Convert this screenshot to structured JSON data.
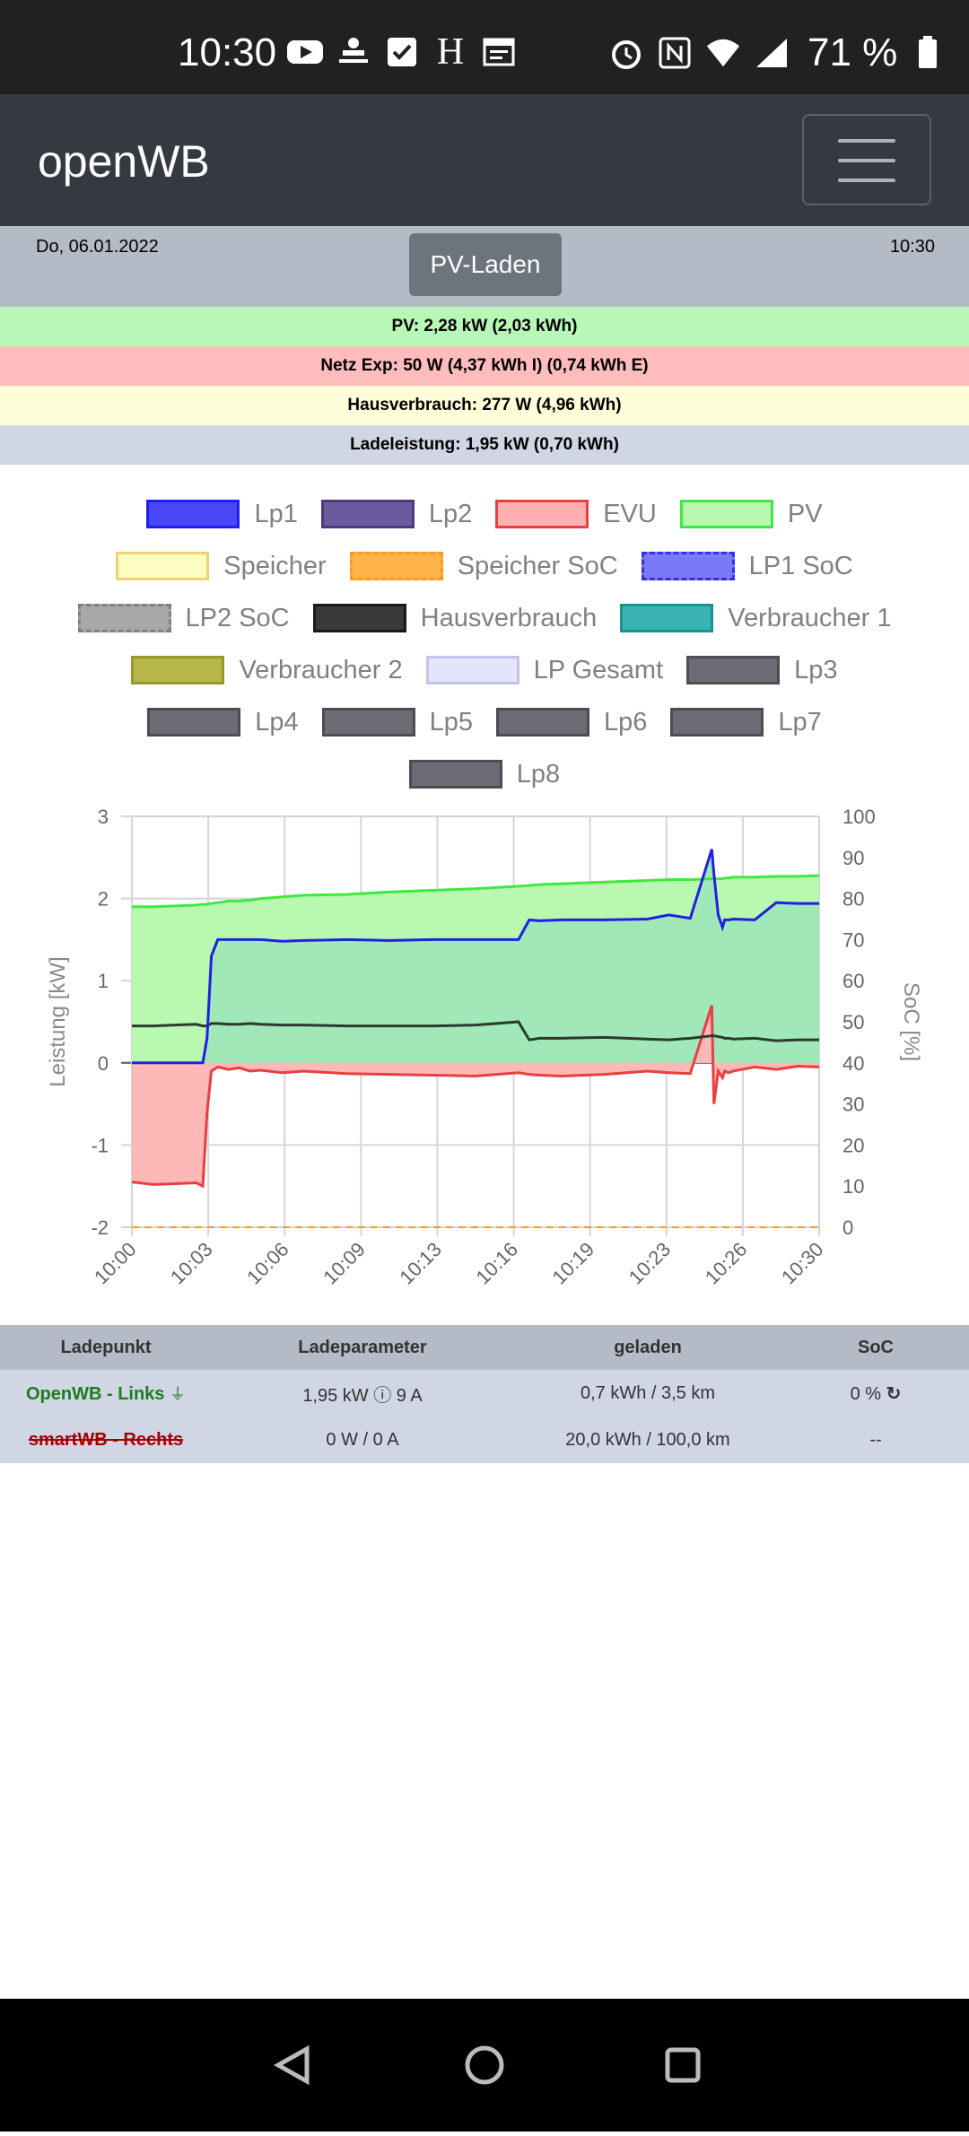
{
  "status_bar": {
    "time": "10:30",
    "battery": "71 %",
    "icons_left": [
      "youtube-icon",
      "app-icon",
      "check-icon",
      "h-icon",
      "calendar-icon"
    ],
    "icons_right": [
      "alarm-icon",
      "nfc-icon",
      "wifi-icon",
      "signal-icon",
      "battery-icon"
    ]
  },
  "navbar": {
    "brand": "openWB"
  },
  "info": {
    "date": "Do, 06.01.2022",
    "time": "10:30",
    "mode": "PV-Laden",
    "pv": "PV: 2,28 kW (2,03 kWh)",
    "netz": "Netz Exp: 50 W (4,37 kWh I) (0,74 kWh E)",
    "haus": "Hausverbrauch: 277 W (4,96 kWh)",
    "lade": "Ladeleistung: 1,95 kW (0,70 kWh)",
    "colors": {
      "pv": "#b7f7b7",
      "netz": "#ffbcbc",
      "haus": "#fefed8",
      "lade": "#d0d6e3"
    }
  },
  "legend": [
    [
      {
        "label": "Lp1",
        "fill": "#4848f7",
        "border": "#2020e8",
        "dash": false
      },
      {
        "label": "Lp2",
        "fill": "#6c5a9e",
        "border": "#4c3a7e",
        "dash": false
      },
      {
        "label": "EVU",
        "fill": "#ffb0b0",
        "border": "#e84040",
        "dash": false
      },
      {
        "label": "PV",
        "fill": "#b8f8b0",
        "border": "#40e840",
        "dash": false
      }
    ],
    [
      {
        "label": "Speicher",
        "fill": "#fdfdc2",
        "border": "#f0d070",
        "dash": false
      },
      {
        "label": "Speicher SoC",
        "fill": "#ffb44a",
        "border": "#ff9a20",
        "dash": true
      },
      {
        "label": "LP1 SoC",
        "fill": "#7a7af8",
        "border": "#3232e0",
        "dash": true
      }
    ],
    [
      {
        "label": "LP2 SoC",
        "fill": "#a8a8a8",
        "border": "#808080",
        "dash": true
      },
      {
        "label": "Hausverbrauch",
        "fill": "#3a3a3a",
        "border": "#1a1a1a",
        "dash": false
      },
      {
        "label": "Verbraucher 1",
        "fill": "#3ab3b3",
        "border": "#1a9393",
        "dash": false
      }
    ],
    [
      {
        "label": "Verbraucher 2",
        "fill": "#b8b84a",
        "border": "#98982a",
        "dash": false
      },
      {
        "label": "LP Gesamt",
        "fill": "#e4e4fb",
        "border": "#c4c4eb",
        "dash": false
      },
      {
        "label": "Lp3",
        "fill": "#6c6c74",
        "border": "#4c4c54",
        "dash": false
      }
    ],
    [
      {
        "label": "Lp4",
        "fill": "#6c6c74",
        "border": "#4c4c54",
        "dash": false
      },
      {
        "label": "Lp5",
        "fill": "#6c6c74",
        "border": "#4c4c54",
        "dash": false
      },
      {
        "label": "Lp6",
        "fill": "#6c6c74",
        "border": "#4c4c54",
        "dash": false
      },
      {
        "label": "Lp7",
        "fill": "#6c6c74",
        "border": "#4c4c54",
        "dash": false
      }
    ],
    [
      {
        "label": "Lp8",
        "fill": "#6c6c74",
        "border": "#4c4c54",
        "dash": false
      }
    ]
  ],
  "chart_data": {
    "type": "line",
    "xlabel": "",
    "ylabel": "Leistung [kW]",
    "y2label": "SoC [%]",
    "ylim": [
      -2,
      3
    ],
    "y2lim": [
      0,
      100
    ],
    "yticks": [
      "3",
      "2",
      "1",
      "0",
      "-1",
      "-2"
    ],
    "y2ticks": [
      "100",
      "90",
      "80",
      "70",
      "60",
      "50",
      "40",
      "30",
      "20",
      "10",
      "0"
    ],
    "xticks": [
      "10:00",
      "10:03",
      "10:06",
      "10:09",
      "10:13",
      "10:16",
      "10:19",
      "10:23",
      "10:26",
      "10:30"
    ],
    "grid": true,
    "x": [
      0,
      1,
      2,
      3,
      3.3,
      3.5,
      3.7,
      4,
      4.5,
      5,
      5.5,
      6,
      7,
      8,
      10,
      12,
      14,
      16,
      18,
      18.5,
      19,
      20,
      22,
      24,
      25,
      26,
      27,
      27.1,
      27.3,
      27.5,
      27.6,
      27.8,
      28,
      29,
      30,
      31,
      32
    ],
    "series": [
      {
        "name": "PV",
        "values": [
          1.9,
          1.9,
          1.91,
          1.92,
          1.93,
          1.93,
          1.94,
          1.95,
          1.97,
          1.97,
          1.98,
          2.0,
          2.02,
          2.04,
          2.05,
          2.08,
          2.1,
          2.12,
          2.15,
          2.16,
          2.17,
          2.18,
          2.2,
          2.22,
          2.23,
          2.23,
          2.24,
          2.24,
          2.24,
          2.24,
          2.25,
          2.25,
          2.26,
          2.26,
          2.27,
          2.27,
          2.28
        ]
      },
      {
        "name": "Lp1",
        "values": [
          0,
          0,
          0,
          0,
          0,
          0.3,
          1.3,
          1.5,
          1.5,
          1.5,
          1.5,
          1.5,
          1.48,
          1.49,
          1.5,
          1.49,
          1.5,
          1.5,
          1.5,
          1.74,
          1.73,
          1.74,
          1.74,
          1.75,
          1.8,
          1.76,
          2.6,
          2.3,
          1.8,
          1.65,
          1.74,
          1.74,
          1.75,
          1.74,
          1.95,
          1.94,
          1.94
        ]
      },
      {
        "name": "EVU",
        "values": [
          -1.45,
          -1.48,
          -1.47,
          -1.46,
          -1.5,
          -0.6,
          -0.1,
          -0.05,
          -0.08,
          -0.06,
          -0.1,
          -0.09,
          -0.12,
          -0.1,
          -0.13,
          -0.14,
          -0.15,
          -0.16,
          -0.12,
          -0.14,
          -0.15,
          -0.16,
          -0.14,
          -0.1,
          -0.12,
          -0.13,
          0.7,
          -0.5,
          -0.1,
          -0.18,
          -0.1,
          -0.12,
          -0.1,
          -0.05,
          -0.08,
          -0.04,
          -0.05
        ]
      },
      {
        "name": "Hausverbrauch",
        "values": [
          0.45,
          0.45,
          0.46,
          0.47,
          0.45,
          0.45,
          0.48,
          0.48,
          0.47,
          0.47,
          0.48,
          0.47,
          0.46,
          0.46,
          0.45,
          0.45,
          0.45,
          0.46,
          0.5,
          0.28,
          0.3,
          0.3,
          0.31,
          0.29,
          0.28,
          0.3,
          0.33,
          0.33,
          0.32,
          0.31,
          0.3,
          0.3,
          0.29,
          0.3,
          0.27,
          0.28,
          0.28
        ]
      }
    ]
  },
  "table": {
    "headers": [
      "Ladepunkt",
      "Ladeparameter",
      "geladen",
      "SoC"
    ],
    "rows": [
      {
        "name": "OpenWB - Links",
        "param": "1,95 kW ⓘ 9 A",
        "geladen": "0,7 kWh / 3,5 km",
        "soc": "0 %"
      },
      {
        "name": "smartWB - Rechts",
        "param": "0 W / 0 A",
        "geladen": "20,0 kWh / 100,0 km",
        "soc": "--"
      }
    ]
  }
}
